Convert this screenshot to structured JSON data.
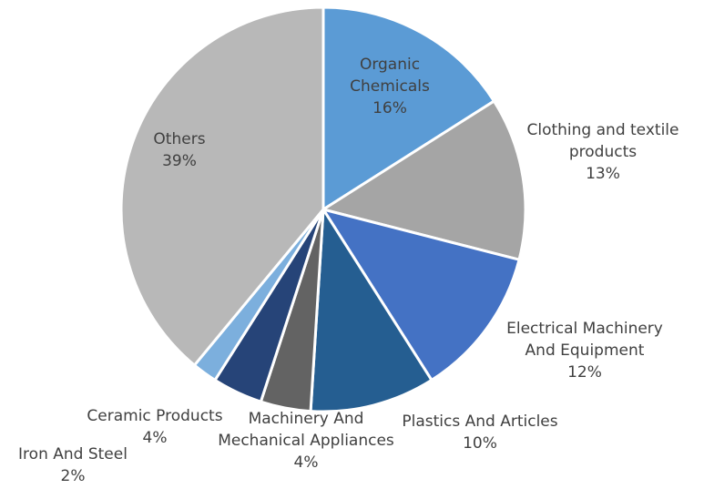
{
  "chart_data": {
    "type": "pie",
    "title": "",
    "categories": [
      "Organic Chemicals",
      "Clothing and textile products",
      "Electrical Machinery And Equipment",
      "Plastics And Articles",
      "Machinery And Mechanical Appliances",
      "Ceramic Products",
      "Iron And Steel",
      "Others"
    ],
    "values": [
      16,
      13,
      12,
      10,
      4,
      4,
      2,
      39
    ],
    "value_labels": [
      "16%",
      "13%",
      "12%",
      "10%",
      "4%",
      "4%",
      "2%",
      "39%"
    ],
    "label_lines": [
      [
        "Organic",
        "Chemicals"
      ],
      [
        "Clothing and textile",
        "products"
      ],
      [
        "Electrical Machinery",
        "And Equipment"
      ],
      [
        "Plastics And Articles"
      ],
      [
        "Machinery And",
        "Mechanical Appliances"
      ],
      [
        "Ceramic Products"
      ],
      [
        "Iron And Steel"
      ],
      [
        "Others"
      ]
    ],
    "colors": [
      "#5b9bd5",
      "#a5a5a5",
      "#4472c4",
      "#255e91",
      "#636363",
      "#264478",
      "#7cafdd",
      "#b8b8b8"
    ],
    "start": "12 o'clock",
    "direction": "clockwise",
    "legend": "none",
    "data_labels": "category and percentage"
  }
}
